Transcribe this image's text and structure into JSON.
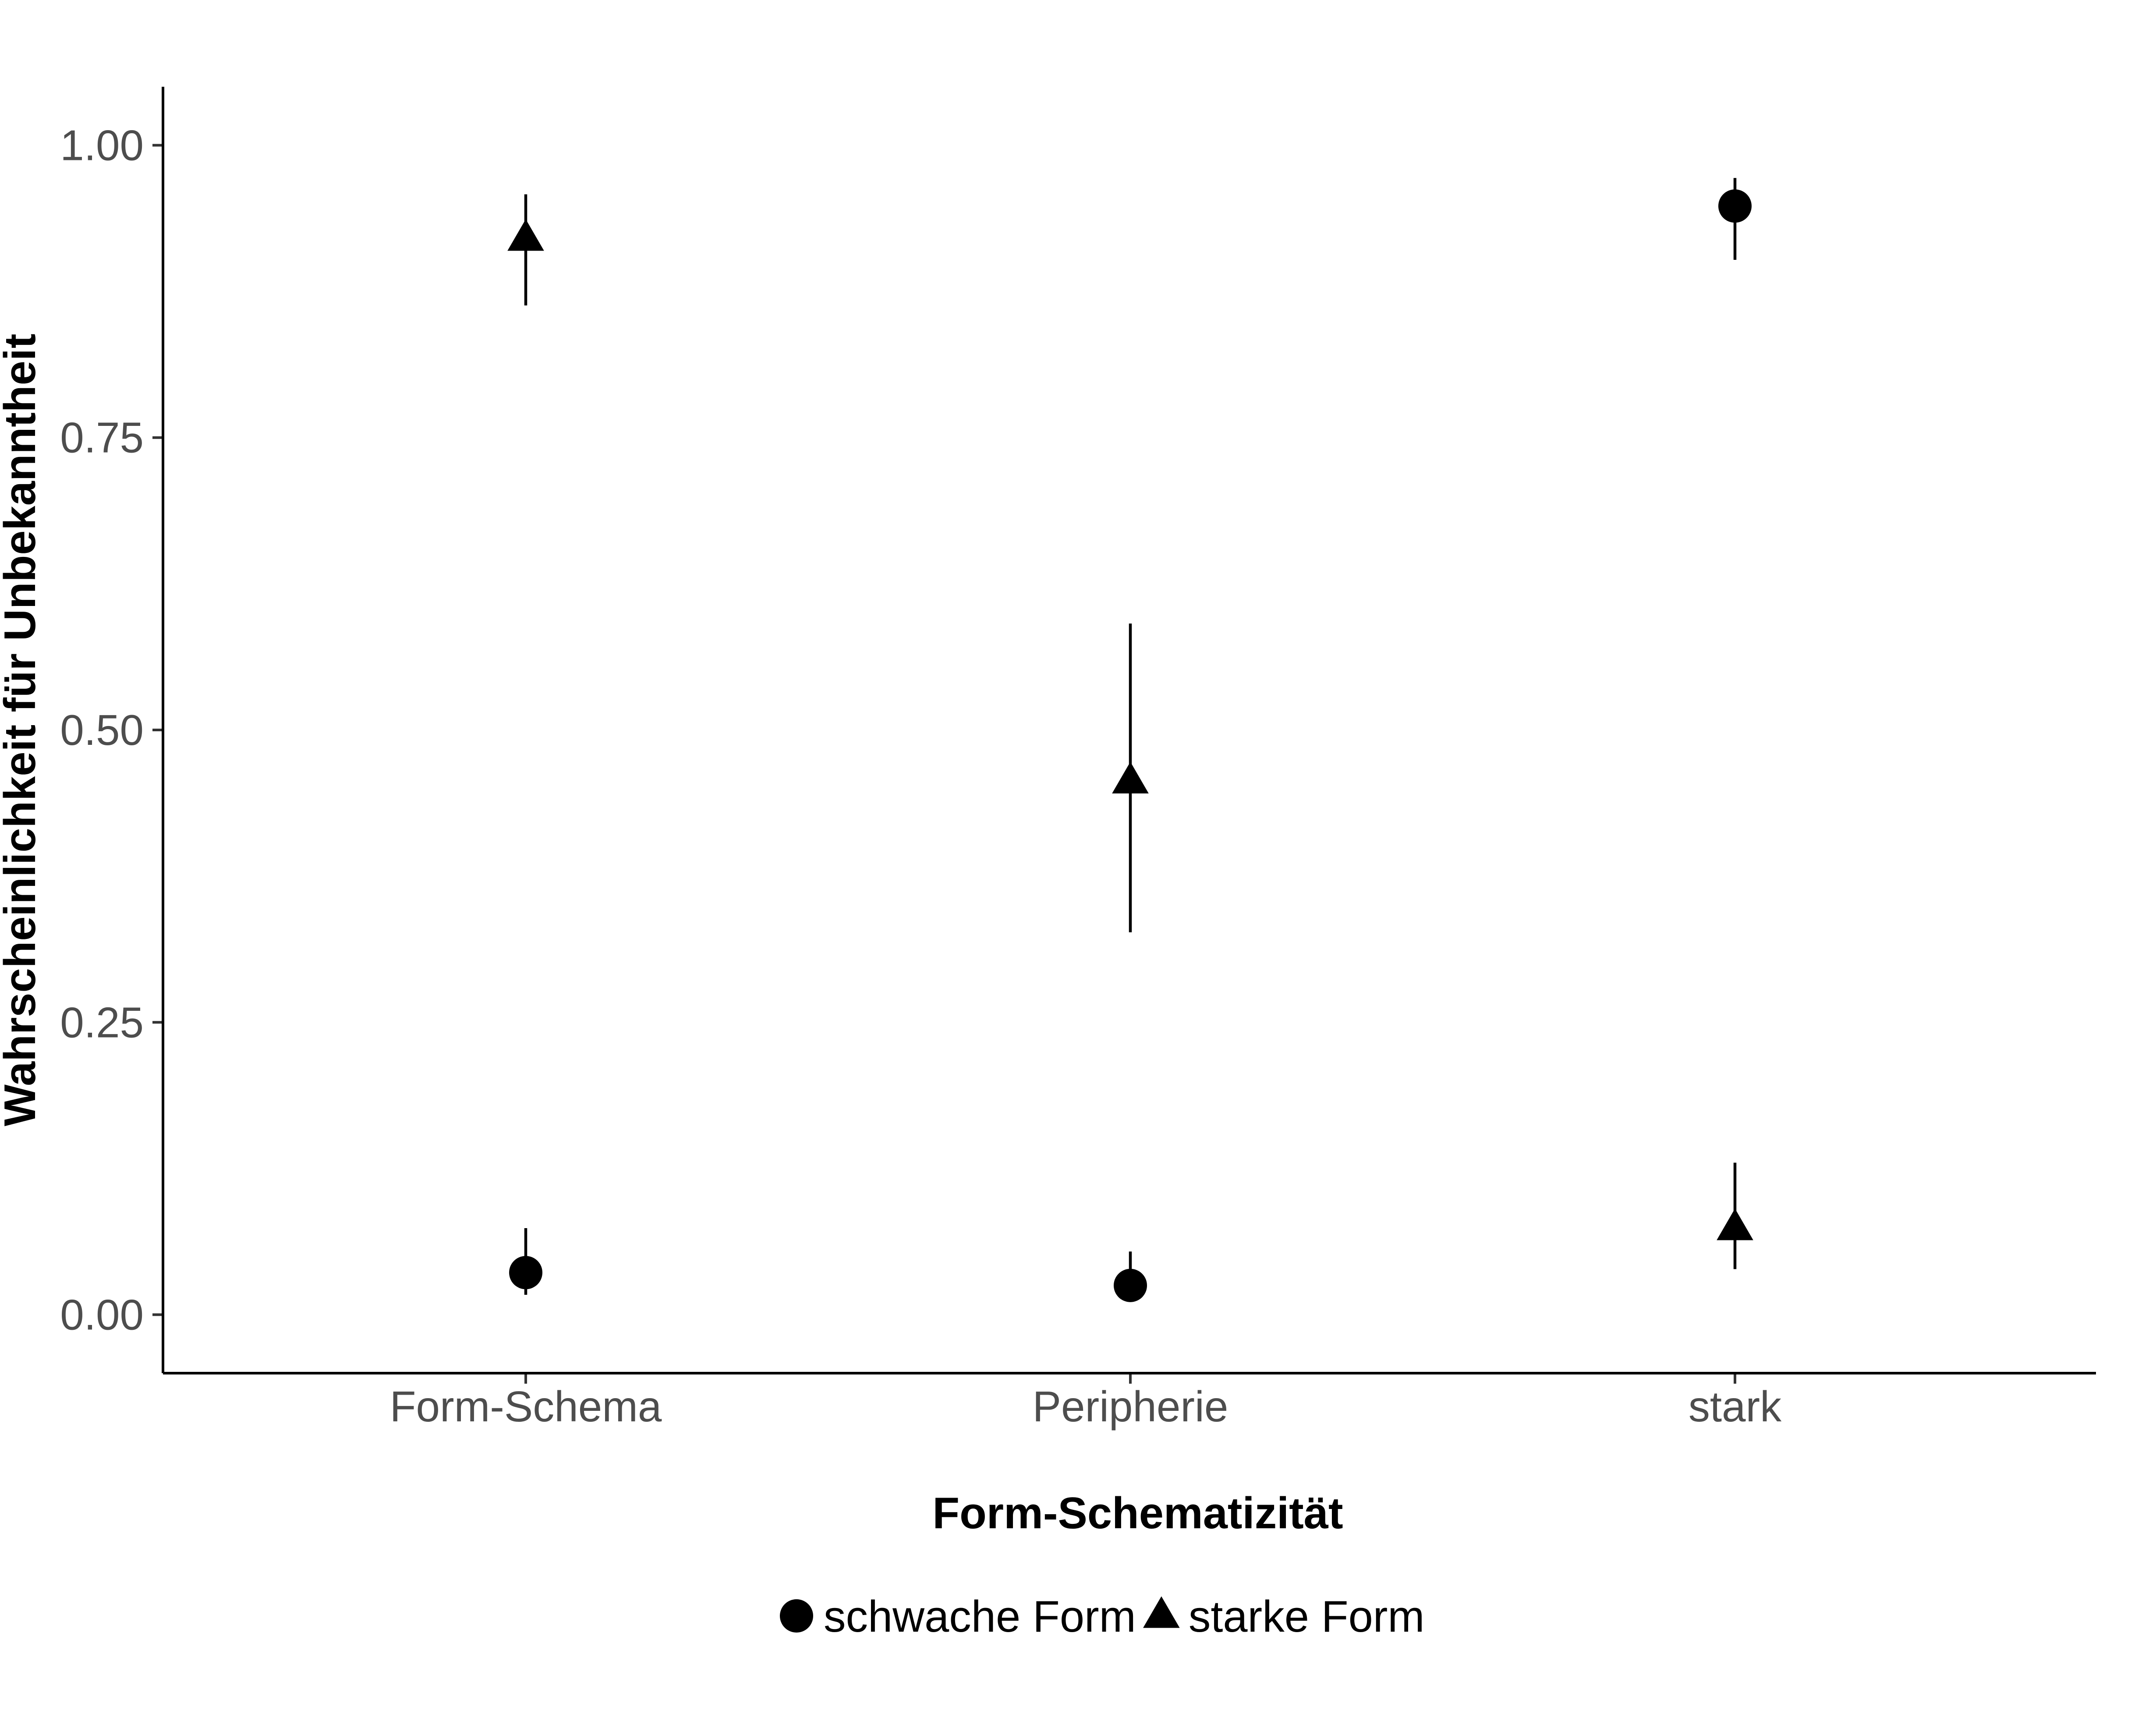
{
  "chart_data": {
    "type": "scatter",
    "title": "",
    "xlabel": "Form-Schematizität",
    "ylabel": "Wahrscheinlichkeit für Unbekanntheit",
    "categories": [
      "Form-Schema",
      "Peripherie",
      "stark"
    ],
    "ylim": [
      -0.05,
      1.05
    ],
    "yticks": [
      0,
      0.25,
      0.5,
      0.75,
      1
    ],
    "ytick_labels": [
      "0.00",
      "0.25",
      "0.50",
      "0.75",
      "1.00"
    ],
    "grid": false,
    "legend_position": "bottom",
    "series": [
      {
        "name": "schwache Form",
        "marker": "circle",
        "color": "#000000",
        "values": [
          0.036,
          0.025,
          0.948
        ],
        "lower": [
          0.017,
          0.012,
          0.902
        ],
        "upper": [
          0.074,
          0.054,
          0.972
        ]
      },
      {
        "name": "starke Form",
        "marker": "triangle",
        "color": "#000000",
        "values": [
          0.92,
          0.456,
          0.074
        ],
        "lower": [
          0.863,
          0.327,
          0.039
        ],
        "upper": [
          0.958,
          0.591,
          0.13
        ]
      }
    ]
  }
}
